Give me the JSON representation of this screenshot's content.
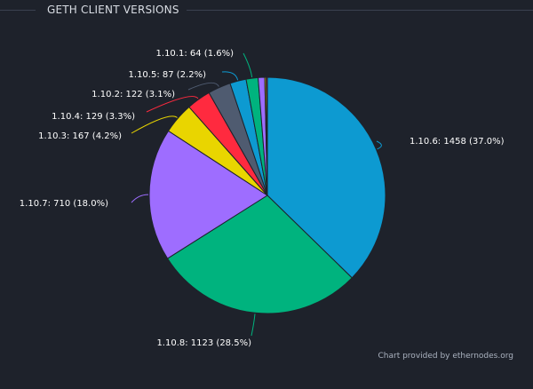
{
  "header": {
    "title": "GETH CLIENT VERSIONS"
  },
  "footer": {
    "credit": "Chart provided by ethernodes.org"
  },
  "chart_data": {
    "type": "pie",
    "title": "GETH CLIENT VERSIONS",
    "slices": [
      {
        "label": "1.10.6",
        "value": 1458,
        "percent": 37.0,
        "color": "#0d9ad1",
        "display": "1.10.6: 1458 (37.0%)"
      },
      {
        "label": "1.10.8",
        "value": 1123,
        "percent": 28.5,
        "color": "#00b37e",
        "display": "1.10.8: 1123 (28.5%)"
      },
      {
        "label": "1.10.7",
        "value": 710,
        "percent": 18.0,
        "color": "#9e6dff",
        "display": "1.10.7: 710 (18.0%)"
      },
      {
        "label": "1.10.3",
        "value": 167,
        "percent": 4.2,
        "color": "#e9d500",
        "display": "1.10.3: 167 (4.2%)"
      },
      {
        "label": "1.10.4",
        "value": 129,
        "percent": 3.3,
        "color": "#ff2a3f",
        "display": "1.10.4: 129 (3.3%)"
      },
      {
        "label": "1.10.2",
        "value": 122,
        "percent": 3.1,
        "color": "#4f5b70",
        "display": "1.10.2: 122 (3.1%)"
      },
      {
        "label": "1.10.5",
        "value": 87,
        "percent": 2.2,
        "color": "#0d9ad1",
        "display": "1.10.5: 87 (2.2%)"
      },
      {
        "label": "1.10.1",
        "value": 64,
        "percent": 1.6,
        "color": "#00b37e",
        "display": "1.10.1: 64 (1.6%)"
      },
      {
        "label": "",
        "value": 35,
        "percent": 0.9,
        "color": "#9e6dff",
        "display": ""
      },
      {
        "label": "",
        "value": 8,
        "percent": 0.2,
        "color": "#e9d500",
        "display": ""
      },
      {
        "label": "",
        "value": 6,
        "percent": 0.15,
        "color": "#ff2a3f",
        "display": ""
      }
    ]
  }
}
